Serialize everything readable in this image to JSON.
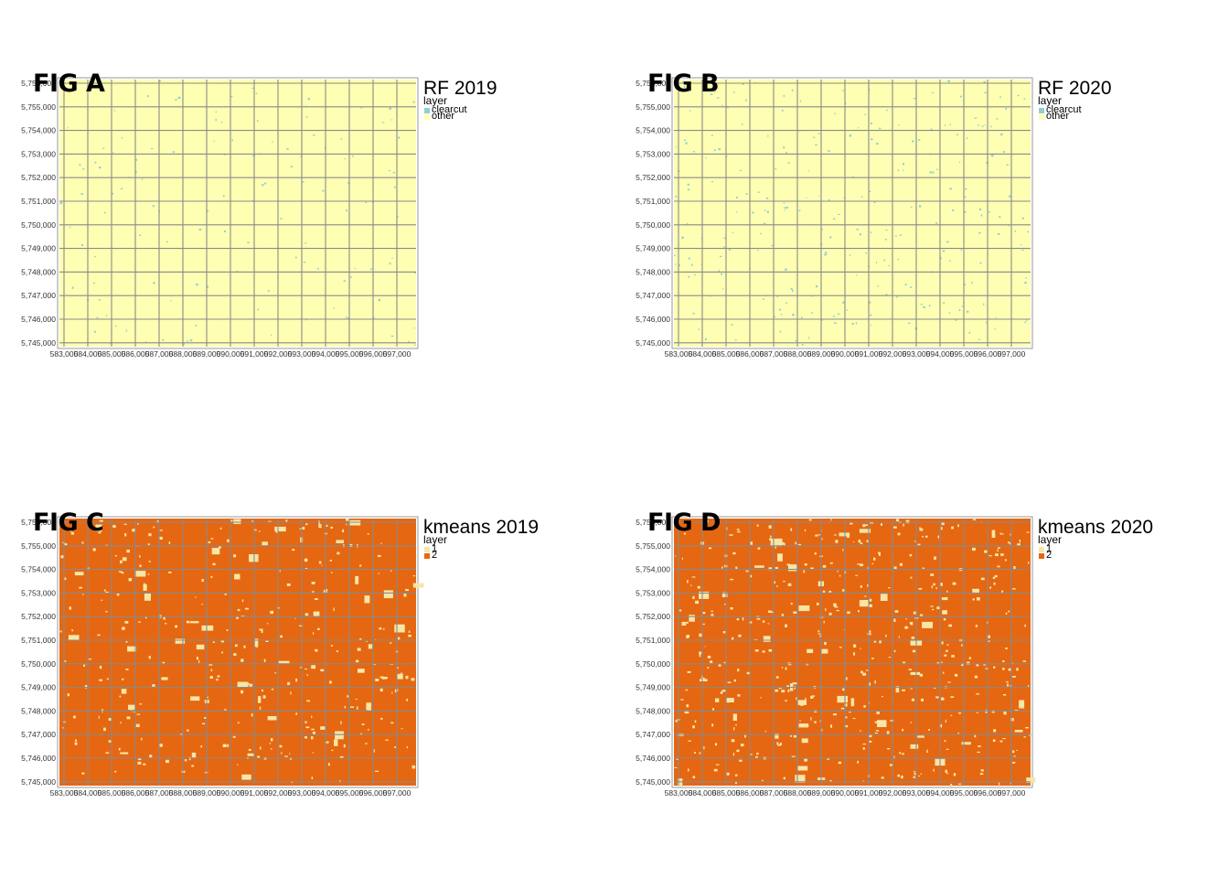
{
  "x_ticks": [
    "583,000",
    "584,000",
    "585,000",
    "586,000",
    "587,000",
    "588,000",
    "589,000",
    "590,000",
    "591,000",
    "592,000",
    "593,000",
    "594,000",
    "595,000",
    "596,000",
    "597,000"
  ],
  "y_ticks": [
    "5,756,000",
    "5,755,000",
    "5,754,000",
    "5,753,000",
    "5,752,000",
    "5,751,000",
    "5,750,000",
    "5,749,000",
    "5,748,000",
    "5,747,000",
    "5,746,000",
    "5,745,000"
  ],
  "colors": {
    "clearcut": "#8fd0d0",
    "other": "#ffffb3",
    "class_1": "#f7e6a8",
    "class_2": "#e66711",
    "grid": "#8a8a8a"
  },
  "panels": [
    {
      "fig_label": "FIG A",
      "legend_title": "RF 2019",
      "legend_sub": "layer",
      "kind": "rf",
      "density": 0.05,
      "items": [
        {
          "label": "clearcut",
          "color": "#8fd0d0"
        },
        {
          "label": "other",
          "color": "#ffffb3"
        }
      ]
    },
    {
      "fig_label": "FIG B",
      "legend_title": "RF 2020",
      "legend_sub": "layer",
      "kind": "rf",
      "density": 0.1,
      "items": [
        {
          "label": "clearcut",
          "color": "#8fd0d0"
        },
        {
          "label": "other",
          "color": "#ffffb3"
        }
      ]
    },
    {
      "fig_label": "FIG C",
      "legend_title": "kmeans 2019",
      "legend_sub": "layer",
      "kind": "kmeans",
      "density": 0.14,
      "items": [
        {
          "label": "1",
          "color": "#f7e6a8"
        },
        {
          "label": "2",
          "color": "#e66711"
        }
      ]
    },
    {
      "fig_label": "FIG D",
      "legend_title": "kmeans 2020",
      "legend_sub": "layer",
      "kind": "kmeans",
      "density": 0.2,
      "items": [
        {
          "label": "1",
          "color": "#f7e6a8"
        },
        {
          "label": "2",
          "color": "#e66711"
        }
      ]
    }
  ]
}
